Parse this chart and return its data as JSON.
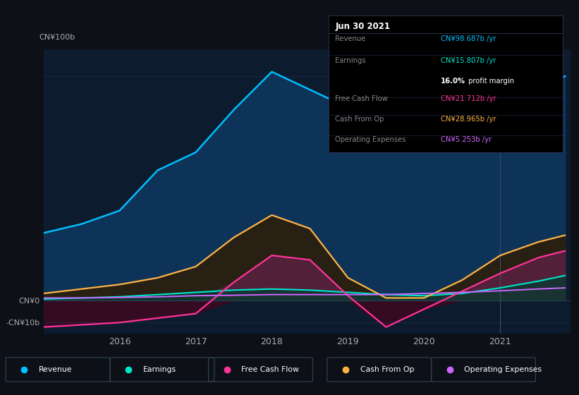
{
  "bg_color": "#0d1117",
  "plot_bg_color": "#0d1b2e",
  "ylim": [
    -15,
    112
  ],
  "xlim": [
    2015.0,
    2021.92
  ],
  "x_years": [
    2015.0,
    2015.5,
    2016.0,
    2016.5,
    2017.0,
    2017.5,
    2018.0,
    2018.5,
    2019.0,
    2019.5,
    2020.0,
    2020.5,
    2021.0,
    2021.5,
    2021.85
  ],
  "revenue": [
    30,
    34,
    40,
    58,
    66,
    85,
    102,
    94,
    86,
    72,
    68,
    76,
    84,
    94,
    100
  ],
  "earnings": [
    0.5,
    1.0,
    1.5,
    2.5,
    3.5,
    4.5,
    5.0,
    4.5,
    3.5,
    2.5,
    2.0,
    3.0,
    5.5,
    8.5,
    11.0
  ],
  "free_cash_flow": [
    -12,
    -11,
    -10,
    -8,
    -6,
    8,
    20,
    18,
    2,
    -12,
    -4,
    4,
    12,
    19,
    22
  ],
  "cash_from_op": [
    3,
    5,
    7,
    10,
    15,
    28,
    38,
    32,
    10,
    1,
    1,
    9,
    20,
    26,
    29
  ],
  "op_expenses": [
    1.0,
    1.0,
    1.2,
    1.5,
    2.0,
    2.2,
    2.5,
    2.5,
    2.5,
    2.5,
    3.0,
    3.5,
    4.2,
    5.0,
    5.5
  ],
  "revenue_color": "#00bfff",
  "revenue_fill": "#0d3358",
  "earnings_color": "#00e5cc",
  "earnings_fill": "#0a3830",
  "free_cash_flow_color": "#ff3399",
  "free_cash_flow_fill_pos": "#5a2040",
  "free_cash_flow_fill_neg": "#3a0a20",
  "cash_from_op_color": "#ffb347",
  "cash_from_op_fill": "#2a2010",
  "op_expenses_color": "#cc66ff",
  "op_expenses_fill": "#241040",
  "legend_items": [
    "Revenue",
    "Earnings",
    "Free Cash Flow",
    "Cash From Op",
    "Operating Expenses"
  ],
  "legend_colors": [
    "#00bfff",
    "#00e5cc",
    "#ff3399",
    "#ffb347",
    "#cc66ff"
  ],
  "vertical_line_x": 2021.0,
  "xticklabels": [
    "2016",
    "2017",
    "2018",
    "2019",
    "2020",
    "2021"
  ],
  "xtick_positions": [
    2016,
    2017,
    2018,
    2019,
    2020,
    2021
  ],
  "info_date": "Jun 30 2021",
  "info_rows": [
    {
      "label": "Revenue",
      "value": "CN¥98.687b /yr",
      "vcolor": "#00bfff",
      "sep": true
    },
    {
      "label": "Earnings",
      "value": "CN¥15.807b /yr",
      "vcolor": "#00e5cc",
      "sep": false
    },
    {
      "label": "",
      "value": "16.0% profit margin",
      "vcolor": "#ffffff",
      "sep": true,
      "bold": "16.0%"
    },
    {
      "label": "Free Cash Flow",
      "value": "CN¥21.712b /yr",
      "vcolor": "#ff3399",
      "sep": true
    },
    {
      "label": "Cash From Op",
      "value": "CN¥28.965b /yr",
      "vcolor": "#ffb347",
      "sep": true
    },
    {
      "label": "Operating Expenses",
      "value": "CN¥5.253b /yr",
      "vcolor": "#cc66ff",
      "sep": false
    }
  ]
}
